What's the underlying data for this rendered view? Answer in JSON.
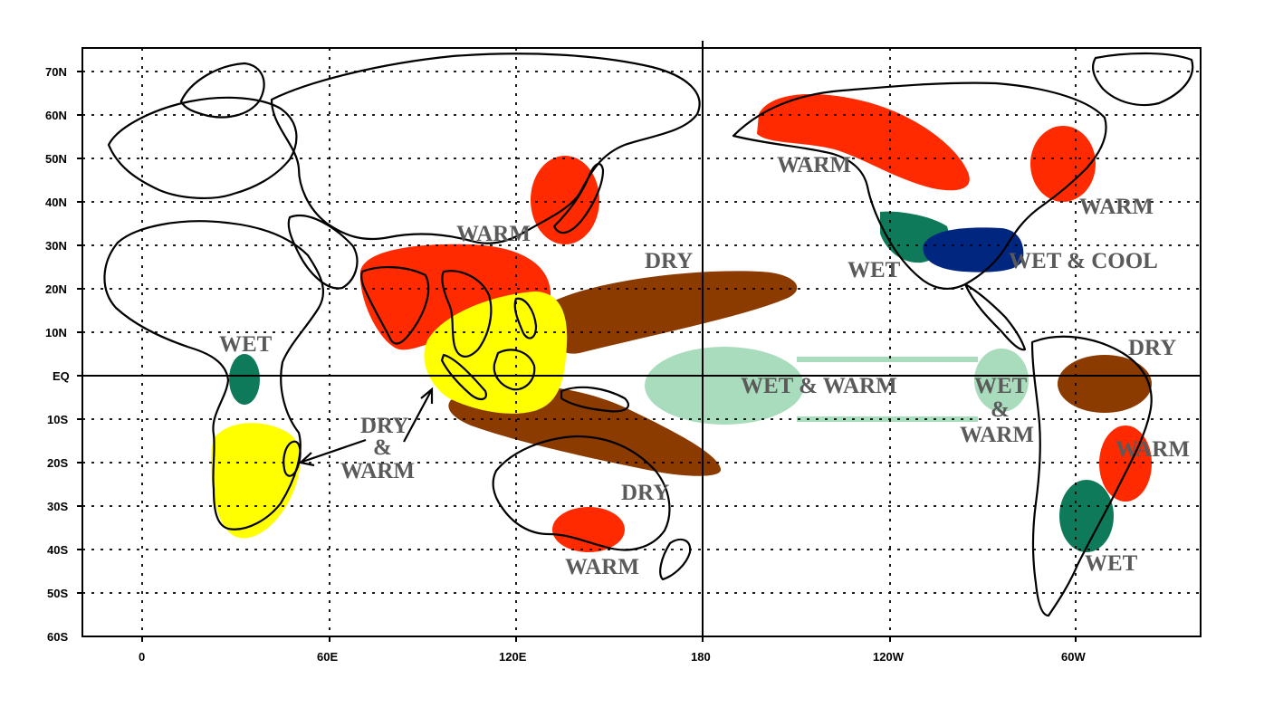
{
  "map": {
    "lat_ticks": [
      "70N",
      "60N",
      "50N",
      "40N",
      "30N",
      "20N",
      "10N",
      "EQ",
      "10S",
      "20S",
      "30S",
      "40S",
      "50S",
      "60S"
    ],
    "lon_ticks": [
      "0",
      "60E",
      "120E",
      "180",
      "120W",
      "60W"
    ],
    "colors": {
      "warm": "#ff2a00",
      "dry": "#8b3a00",
      "dry_warm": "#ffff00",
      "wet": "#0f7a5a",
      "wet_warm": "#a8dcbc",
      "wet_cool": "#002680"
    },
    "labels": {
      "warm_japan": "WARM",
      "warm_alaska": "WARM",
      "warm_ne_america": "WARM",
      "warm_brazil": "WARM",
      "warm_australia": "WARM",
      "dry_pacific": "DRY",
      "dry_south_america": "DRY",
      "dry_australia": "DRY",
      "wet_africa": "WET",
      "wet_california": "WET",
      "wet_cool": "WET & COOL",
      "wet_warm_central": "WET & WARM",
      "wet_east_top": "WET",
      "wet_east_amp": "&",
      "wet_east_bottom": "WARM",
      "dry_warm_top": "DRY",
      "dry_warm_amp": "&",
      "dry_warm_bottom": "WARM",
      "wet_argentina": "WET"
    }
  }
}
